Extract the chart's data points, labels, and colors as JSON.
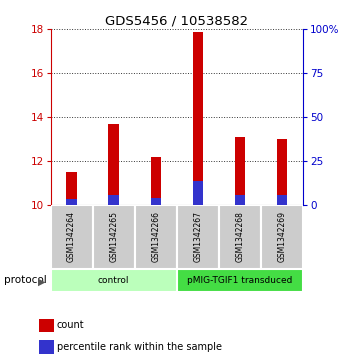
{
  "title": "GDS5456 / 10538582",
  "samples": [
    "GSM1342264",
    "GSM1342265",
    "GSM1342266",
    "GSM1342267",
    "GSM1342268",
    "GSM1342269"
  ],
  "count_values": [
    11.5,
    13.7,
    12.2,
    17.85,
    13.1,
    13.0
  ],
  "percentile_values": [
    3.5,
    5.5,
    4.0,
    13.5,
    5.5,
    5.5
  ],
  "bar_bottom": 10.0,
  "ylim_left": [
    10,
    18
  ],
  "ylim_right": [
    0,
    100
  ],
  "yticks_left": [
    10,
    12,
    14,
    16,
    18
  ],
  "yticks_right": [
    0,
    25,
    50,
    75,
    100
  ],
  "ytick_labels_right": [
    "0",
    "25",
    "50",
    "75",
    "100%"
  ],
  "bar_width": 0.25,
  "blue_bar_width": 0.25,
  "count_color": "#cc0000",
  "percentile_color": "#3333cc",
  "grid_color": "#555555",
  "protocol_groups": [
    {
      "label": "control",
      "span": [
        0,
        3
      ],
      "color": "#bbffbb"
    },
    {
      "label": "pMIG-TGIF1 transduced",
      "span": [
        3,
        6
      ],
      "color": "#44dd44"
    }
  ],
  "legend_items": [
    {
      "label": "count",
      "color": "#cc0000"
    },
    {
      "label": "percentile rank within the sample",
      "color": "#3333cc"
    }
  ],
  "protocol_label": "protocol",
  "sample_cell_color": "#cccccc",
  "left_axis_color": "#cc0000",
  "right_axis_color": "#0000cc"
}
